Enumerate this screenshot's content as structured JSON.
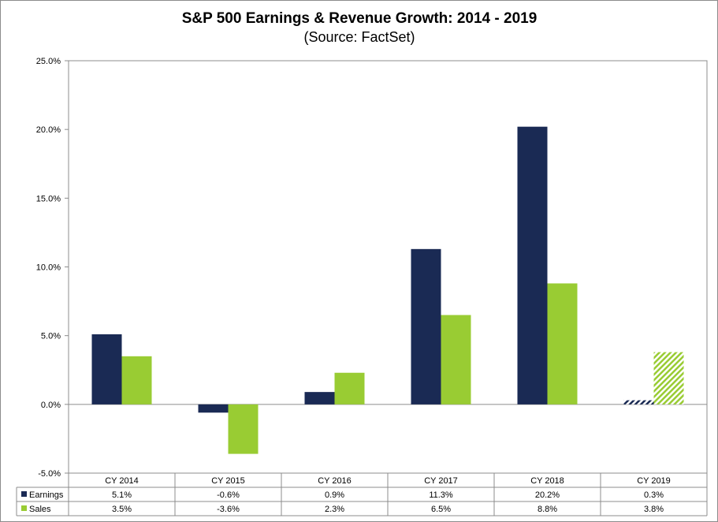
{
  "chart_data": {
    "type": "bar",
    "title": "S&P 500 Earnings & Revenue Growth:  2014 - 2019",
    "subtitle": "(Source: FactSet)",
    "categories": [
      "CY 2014",
      "CY 2015",
      "CY 2016",
      "CY 2017",
      "CY 2018",
      "CY 2019"
    ],
    "series": [
      {
        "name": "Earnings",
        "values": [
          5.1,
          -0.6,
          0.9,
          11.3,
          20.2,
          0.3
        ],
        "labels": [
          "5.1%",
          "-0.6%",
          "0.9%",
          "11.3%",
          "20.2%",
          "0.3%"
        ],
        "color": "#1a2a54"
      },
      {
        "name": "Sales",
        "values": [
          3.5,
          -3.6,
          2.3,
          6.5,
          8.8,
          3.8
        ],
        "labels": [
          "3.5%",
          "-3.6%",
          "2.3%",
          "6.5%",
          "8.8%",
          "3.8%"
        ],
        "color": "#99cc33"
      }
    ],
    "estimated_categories": [
      "CY 2019"
    ],
    "yticks": [
      "-5.0%",
      "0.0%",
      "5.0%",
      "10.0%",
      "15.0%",
      "20.0%",
      "25.0%"
    ],
    "ylim": [
      -5,
      25
    ],
    "data_table": true,
    "grid": false
  }
}
